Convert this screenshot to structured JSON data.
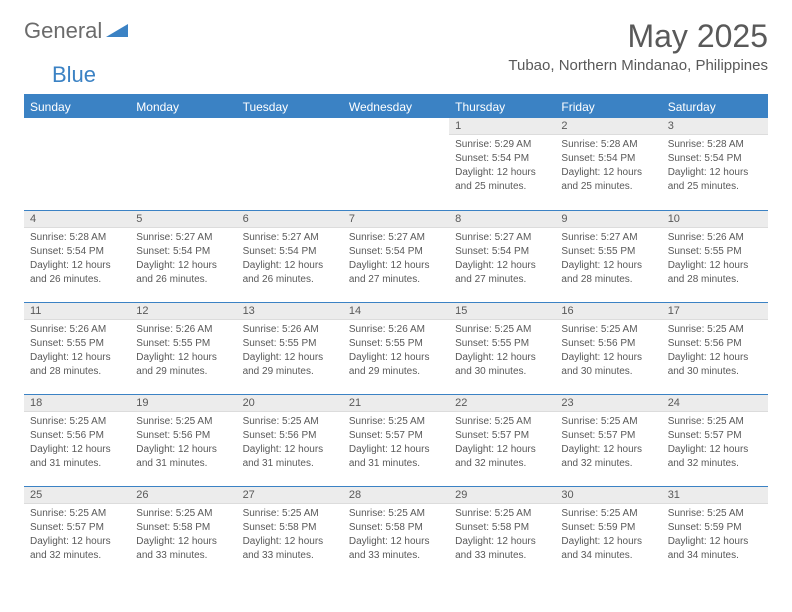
{
  "brand": {
    "first": "General",
    "second": "Blue"
  },
  "title": "May 2025",
  "location": "Tubao, Northern Mindanao, Philippines",
  "colors": {
    "accent": "#3b82c4",
    "gray_bg": "#ececec",
    "text": "#595959"
  },
  "weekdays": [
    "Sunday",
    "Monday",
    "Tuesday",
    "Wednesday",
    "Thursday",
    "Friday",
    "Saturday"
  ],
  "weeks": [
    [
      null,
      null,
      null,
      null,
      {
        "n": "1",
        "sr": "Sunrise: 5:29 AM",
        "ss": "Sunset: 5:54 PM",
        "d1": "Daylight: 12 hours",
        "d2": "and 25 minutes."
      },
      {
        "n": "2",
        "sr": "Sunrise: 5:28 AM",
        "ss": "Sunset: 5:54 PM",
        "d1": "Daylight: 12 hours",
        "d2": "and 25 minutes."
      },
      {
        "n": "3",
        "sr": "Sunrise: 5:28 AM",
        "ss": "Sunset: 5:54 PM",
        "d1": "Daylight: 12 hours",
        "d2": "and 25 minutes."
      }
    ],
    [
      {
        "n": "4",
        "sr": "Sunrise: 5:28 AM",
        "ss": "Sunset: 5:54 PM",
        "d1": "Daylight: 12 hours",
        "d2": "and 26 minutes."
      },
      {
        "n": "5",
        "sr": "Sunrise: 5:27 AM",
        "ss": "Sunset: 5:54 PM",
        "d1": "Daylight: 12 hours",
        "d2": "and 26 minutes."
      },
      {
        "n": "6",
        "sr": "Sunrise: 5:27 AM",
        "ss": "Sunset: 5:54 PM",
        "d1": "Daylight: 12 hours",
        "d2": "and 26 minutes."
      },
      {
        "n": "7",
        "sr": "Sunrise: 5:27 AM",
        "ss": "Sunset: 5:54 PM",
        "d1": "Daylight: 12 hours",
        "d2": "and 27 minutes."
      },
      {
        "n": "8",
        "sr": "Sunrise: 5:27 AM",
        "ss": "Sunset: 5:54 PM",
        "d1": "Daylight: 12 hours",
        "d2": "and 27 minutes."
      },
      {
        "n": "9",
        "sr": "Sunrise: 5:27 AM",
        "ss": "Sunset: 5:55 PM",
        "d1": "Daylight: 12 hours",
        "d2": "and 28 minutes."
      },
      {
        "n": "10",
        "sr": "Sunrise: 5:26 AM",
        "ss": "Sunset: 5:55 PM",
        "d1": "Daylight: 12 hours",
        "d2": "and 28 minutes."
      }
    ],
    [
      {
        "n": "11",
        "sr": "Sunrise: 5:26 AM",
        "ss": "Sunset: 5:55 PM",
        "d1": "Daylight: 12 hours",
        "d2": "and 28 minutes."
      },
      {
        "n": "12",
        "sr": "Sunrise: 5:26 AM",
        "ss": "Sunset: 5:55 PM",
        "d1": "Daylight: 12 hours",
        "d2": "and 29 minutes."
      },
      {
        "n": "13",
        "sr": "Sunrise: 5:26 AM",
        "ss": "Sunset: 5:55 PM",
        "d1": "Daylight: 12 hours",
        "d2": "and 29 minutes."
      },
      {
        "n": "14",
        "sr": "Sunrise: 5:26 AM",
        "ss": "Sunset: 5:55 PM",
        "d1": "Daylight: 12 hours",
        "d2": "and 29 minutes."
      },
      {
        "n": "15",
        "sr": "Sunrise: 5:25 AM",
        "ss": "Sunset: 5:55 PM",
        "d1": "Daylight: 12 hours",
        "d2": "and 30 minutes."
      },
      {
        "n": "16",
        "sr": "Sunrise: 5:25 AM",
        "ss": "Sunset: 5:56 PM",
        "d1": "Daylight: 12 hours",
        "d2": "and 30 minutes."
      },
      {
        "n": "17",
        "sr": "Sunrise: 5:25 AM",
        "ss": "Sunset: 5:56 PM",
        "d1": "Daylight: 12 hours",
        "d2": "and 30 minutes."
      }
    ],
    [
      {
        "n": "18",
        "sr": "Sunrise: 5:25 AM",
        "ss": "Sunset: 5:56 PM",
        "d1": "Daylight: 12 hours",
        "d2": "and 31 minutes."
      },
      {
        "n": "19",
        "sr": "Sunrise: 5:25 AM",
        "ss": "Sunset: 5:56 PM",
        "d1": "Daylight: 12 hours",
        "d2": "and 31 minutes."
      },
      {
        "n": "20",
        "sr": "Sunrise: 5:25 AM",
        "ss": "Sunset: 5:56 PM",
        "d1": "Daylight: 12 hours",
        "d2": "and 31 minutes."
      },
      {
        "n": "21",
        "sr": "Sunrise: 5:25 AM",
        "ss": "Sunset: 5:57 PM",
        "d1": "Daylight: 12 hours",
        "d2": "and 31 minutes."
      },
      {
        "n": "22",
        "sr": "Sunrise: 5:25 AM",
        "ss": "Sunset: 5:57 PM",
        "d1": "Daylight: 12 hours",
        "d2": "and 32 minutes."
      },
      {
        "n": "23",
        "sr": "Sunrise: 5:25 AM",
        "ss": "Sunset: 5:57 PM",
        "d1": "Daylight: 12 hours",
        "d2": "and 32 minutes."
      },
      {
        "n": "24",
        "sr": "Sunrise: 5:25 AM",
        "ss": "Sunset: 5:57 PM",
        "d1": "Daylight: 12 hours",
        "d2": "and 32 minutes."
      }
    ],
    [
      {
        "n": "25",
        "sr": "Sunrise: 5:25 AM",
        "ss": "Sunset: 5:57 PM",
        "d1": "Daylight: 12 hours",
        "d2": "and 32 minutes."
      },
      {
        "n": "26",
        "sr": "Sunrise: 5:25 AM",
        "ss": "Sunset: 5:58 PM",
        "d1": "Daylight: 12 hours",
        "d2": "and 33 minutes."
      },
      {
        "n": "27",
        "sr": "Sunrise: 5:25 AM",
        "ss": "Sunset: 5:58 PM",
        "d1": "Daylight: 12 hours",
        "d2": "and 33 minutes."
      },
      {
        "n": "28",
        "sr": "Sunrise: 5:25 AM",
        "ss": "Sunset: 5:58 PM",
        "d1": "Daylight: 12 hours",
        "d2": "and 33 minutes."
      },
      {
        "n": "29",
        "sr": "Sunrise: 5:25 AM",
        "ss": "Sunset: 5:58 PM",
        "d1": "Daylight: 12 hours",
        "d2": "and 33 minutes."
      },
      {
        "n": "30",
        "sr": "Sunrise: 5:25 AM",
        "ss": "Sunset: 5:59 PM",
        "d1": "Daylight: 12 hours",
        "d2": "and 34 minutes."
      },
      {
        "n": "31",
        "sr": "Sunrise: 5:25 AM",
        "ss": "Sunset: 5:59 PM",
        "d1": "Daylight: 12 hours",
        "d2": "and 34 minutes."
      }
    ]
  ]
}
